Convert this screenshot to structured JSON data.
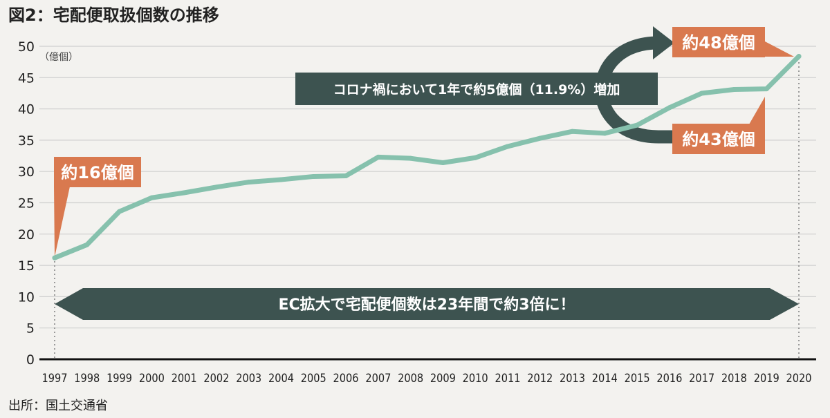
{
  "title": "図2：宅配便取扱個数の推移",
  "source": "出所：国土交通省",
  "chart_data": {
    "type": "line",
    "unit_label": "（億個）",
    "x": [
      "1997",
      "1998",
      "1999",
      "2000",
      "2001",
      "2002",
      "2003",
      "2004",
      "2005",
      "2006",
      "2007",
      "2008",
      "2009",
      "2010",
      "2011",
      "2012",
      "2013",
      "2014",
      "2015",
      "2016",
      "2017",
      "2018",
      "2019",
      "2020"
    ],
    "series": [
      {
        "values": [
          16.2,
          18.3,
          23.6,
          25.8,
          26.6,
          27.5,
          28.3,
          28.7,
          29.2,
          29.3,
          32.3,
          32.1,
          31.4,
          32.2,
          34.0,
          35.3,
          36.4,
          36.1,
          37.4,
          40.2,
          42.5,
          43.1,
          43.2,
          48.4
        ]
      }
    ],
    "ylim": [
      0,
      50
    ],
    "yticks": [
      0,
      5,
      10,
      15,
      20,
      25,
      30,
      35,
      40,
      45,
      50
    ],
    "line_color": "#86c1ad",
    "annotations": {
      "start": "約16億個",
      "mid": "約43億個",
      "end": "約48億個",
      "covid": "コロナ禍において1年で約5億個（11.9%）増加",
      "banner": "EC拡大で宅配便個数は23年間で約3倍に！"
    },
    "colors": {
      "callout": "#d9794f",
      "dark": "#3d5350"
    }
  }
}
